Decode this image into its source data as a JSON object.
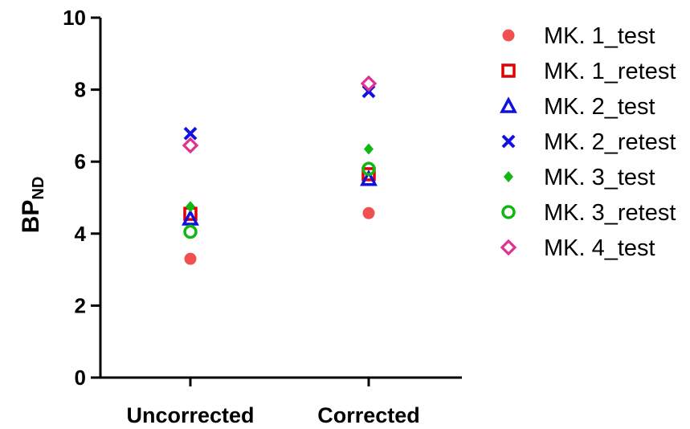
{
  "chart_data": {
    "type": "scatter",
    "categories": [
      "Uncorrected",
      "Corrected"
    ],
    "ylabel": "BP",
    "ylabel_sub": "ND",
    "ylim": [
      0,
      10
    ],
    "yticks": [
      "0",
      "2",
      "4",
      "6",
      "8",
      "10"
    ],
    "legend_position": "right",
    "series": [
      {
        "name": "MK. 1_test",
        "marker": "filled-circle",
        "color": "#f05050",
        "values": [
          3.3,
          4.57
        ]
      },
      {
        "name": "MK. 1_retest",
        "marker": "open-square",
        "color": "#e00000",
        "values": [
          4.55,
          5.65
        ]
      },
      {
        "name": "MK. 2_test",
        "marker": "open-triangle",
        "color": "#1010e0",
        "values": [
          4.42,
          5.52
        ]
      },
      {
        "name": "MK. 2_retest",
        "marker": "x",
        "color": "#1010e0",
        "values": [
          6.78,
          7.95
        ]
      },
      {
        "name": "MK. 3_test",
        "marker": "filled-diamond",
        "color": "#12b812",
        "values": [
          4.75,
          6.35
        ]
      },
      {
        "name": "MK. 3_retest",
        "marker": "open-circle",
        "color": "#12b812",
        "values": [
          4.05,
          5.8
        ]
      },
      {
        "name": "MK. 4_test",
        "marker": "open-diamond",
        "color": "#e03090",
        "values": [
          6.45,
          8.17
        ]
      }
    ]
  }
}
